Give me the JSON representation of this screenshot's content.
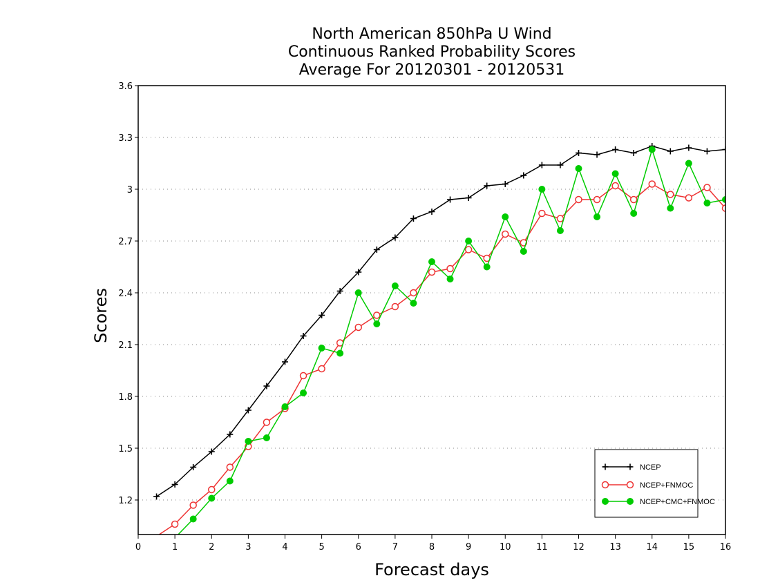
{
  "chart_data": {
    "type": "line",
    "title": [
      "North American 850hPa U Wind",
      "Continuous Ranked Probability Scores",
      "Average For 20120301 - 20120531"
    ],
    "xlabel": "Forecast days",
    "ylabel": "Scores",
    "xlim": [
      0,
      16
    ],
    "ylim": [
      1.0,
      3.6
    ],
    "xticks": [
      "0",
      "1",
      "2",
      "3",
      "4",
      "5",
      "6",
      "7",
      "8",
      "9",
      "10",
      "11",
      "12",
      "13",
      "14",
      "15",
      "16"
    ],
    "yticks": [
      "1.2",
      "1.5",
      "1.8",
      "2.1",
      "2.4",
      "2.7",
      "3",
      "3.3",
      "3.6"
    ],
    "grid": "horizontal-dotted",
    "legend_position": "bottom-right",
    "x": [
      0.5,
      1,
      1.5,
      2,
      2.5,
      3,
      3.5,
      4,
      4.5,
      5,
      5.5,
      6,
      6.5,
      7,
      7.5,
      8,
      8.5,
      9,
      9.5,
      10,
      10.5,
      11,
      11.5,
      12,
      12.5,
      13,
      13.5,
      14,
      14.5,
      15,
      15.5,
      16
    ],
    "series": [
      {
        "name": "NCEP",
        "color": "#000000",
        "marker": "plus",
        "values": [
          1.22,
          1.29,
          1.39,
          1.48,
          1.58,
          1.72,
          1.86,
          2.0,
          2.15,
          2.27,
          2.41,
          2.52,
          2.65,
          2.72,
          2.83,
          2.87,
          2.94,
          2.95,
          3.02,
          3.03,
          3.08,
          3.14,
          3.14,
          3.21,
          3.2,
          3.23,
          3.21,
          3.25,
          3.22,
          3.24,
          3.22,
          3.23
        ]
      },
      {
        "name": "NCEP+FNMOC",
        "color": "#ee3333",
        "marker": "open-circle",
        "values": [
          0.99,
          1.06,
          1.17,
          1.26,
          1.39,
          1.51,
          1.65,
          1.73,
          1.92,
          1.96,
          2.11,
          2.2,
          2.27,
          2.32,
          2.4,
          2.52,
          2.54,
          2.65,
          2.6,
          2.74,
          2.69,
          2.86,
          2.83,
          2.94,
          2.94,
          3.02,
          2.94,
          3.03,
          2.97,
          2.95,
          3.01,
          2.89
        ]
      },
      {
        "name": "NCEP+CMC+FNMOC",
        "color": "#00cc00",
        "marker": "filled-circle",
        "values": [
          null,
          0.98,
          1.09,
          1.21,
          1.31,
          1.54,
          1.56,
          1.74,
          1.82,
          2.08,
          2.05,
          2.4,
          2.22,
          2.44,
          2.34,
          2.58,
          2.48,
          2.7,
          2.55,
          2.84,
          2.64,
          3.0,
          2.76,
          3.12,
          2.84,
          3.09,
          2.86,
          3.23,
          2.89,
          3.15,
          2.92,
          2.94
        ]
      }
    ]
  }
}
